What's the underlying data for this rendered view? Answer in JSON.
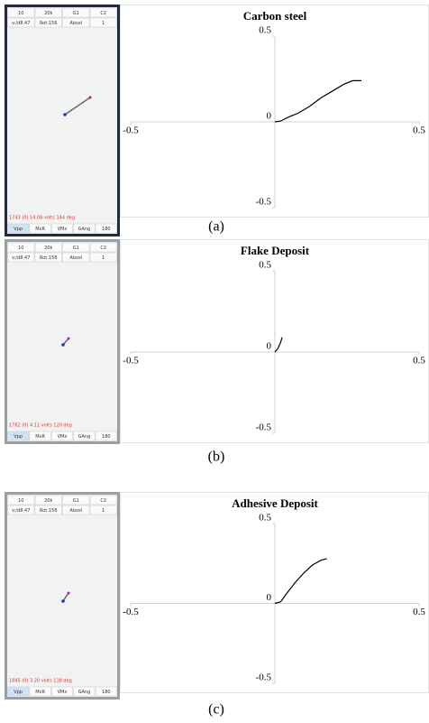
{
  "chart_data": [
    {
      "type": "line",
      "title": "Carbon steel",
      "color": "#000000",
      "x": [
        0,
        0.02,
        0.05,
        0.08,
        0.12,
        0.16,
        0.2,
        0.24,
        0.27,
        0.3
      ],
      "values": [
        0,
        0.005,
        0.03,
        0.05,
        0.09,
        0.14,
        0.18,
        0.22,
        0.24,
        0.24
      ],
      "xlim": [
        -0.5,
        0.5
      ],
      "ylim": [
        -0.5,
        0.5
      ],
      "xticks": [
        -0.5,
        0.5
      ],
      "yticks": [
        -0.5,
        0,
        0.5
      ]
    },
    {
      "type": "line",
      "title": "Flake Deposit",
      "color": "#000000",
      "x": [
        0,
        0.01,
        0.02,
        0.025
      ],
      "values": [
        0,
        0.02,
        0.06,
        0.09
      ],
      "xlim": [
        -0.5,
        0.5
      ],
      "ylim": [
        -0.5,
        0.5
      ],
      "xticks": [
        -0.5,
        0.5
      ],
      "yticks": [
        -0.5,
        0,
        0.5
      ]
    },
    {
      "type": "line",
      "title": "Adhesive Deposit",
      "color": "#000000",
      "x": [
        0,
        0.02,
        0.04,
        0.07,
        0.1,
        0.13,
        0.16,
        0.18
      ],
      "values": [
        0,
        0.01,
        0.06,
        0.13,
        0.19,
        0.24,
        0.27,
        0.28
      ],
      "xlim": [
        -0.5,
        0.5
      ],
      "ylim": [
        -0.5,
        0.5
      ],
      "xticks": [
        -0.5,
        0.5
      ],
      "yticks": [
        -0.5,
        0,
        0.5
      ]
    }
  ],
  "panels": [
    {
      "caption": "(a)",
      "device": {
        "top_row": [
          "10",
          "20k",
          "G1",
          "C2"
        ],
        "second_row": [
          "v:/d8.47",
          "Rot:156",
          "Absol",
          "1"
        ],
        "status": "1743 (0)   14.08 volts 144 deg",
        "bottom_row": [
          "Vpp",
          "MxR",
          "VMx",
          "GAng",
          "180"
        ]
      }
    },
    {
      "caption": "(b)",
      "device": {
        "top_row": [
          "10",
          "20k",
          "G1",
          "C2"
        ],
        "second_row": [
          "v:/d8.47",
          "Rot:156",
          "Absol",
          "1"
        ],
        "status": "1762 (0)   4.11 volts 120 deg",
        "bottom_row": [
          "Vpp",
          "MxR",
          "VMx",
          "GAng",
          "180"
        ]
      }
    },
    {
      "caption": "(c)",
      "device": {
        "top_row": [
          "10",
          "20k",
          "G1",
          "C2"
        ],
        "second_row": [
          "v:/d8.47",
          "Rot:156",
          "Absol",
          "1"
        ],
        "status": "1845 (0)   3.20 volts 118 deg",
        "bottom_row": [
          "Vpp",
          "MxR",
          "VMx",
          "GAng",
          "180"
        ]
      }
    }
  ]
}
